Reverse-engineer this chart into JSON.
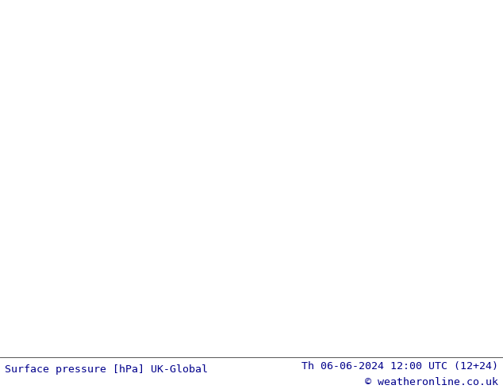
{
  "figure_width": 6.34,
  "figure_height": 4.9,
  "dpi": 100,
  "land_color": "#a8d878",
  "sea_color": "#e8e8e8",
  "coast_color": "#808080",
  "border_color": "#808080",
  "blue_isobar_color": "#0000cc",
  "red_isobar_color": "#cc0000",
  "black_isobar_color": "#000000",
  "bottom_bar_color": "#ffffff",
  "bottom_bar_height": 0.082,
  "label_color": "#00008b",
  "label_fontsize": 9.5,
  "left_label": "Surface pressure [hPa] UK-Global",
  "right_label_line1": "Th 06-06-2024 12:00 UTC (12+24)",
  "right_label_line2": "© weatheronline.co.uk",
  "isobar_lw": 1.1,
  "black_isobar_lw": 2.0
}
